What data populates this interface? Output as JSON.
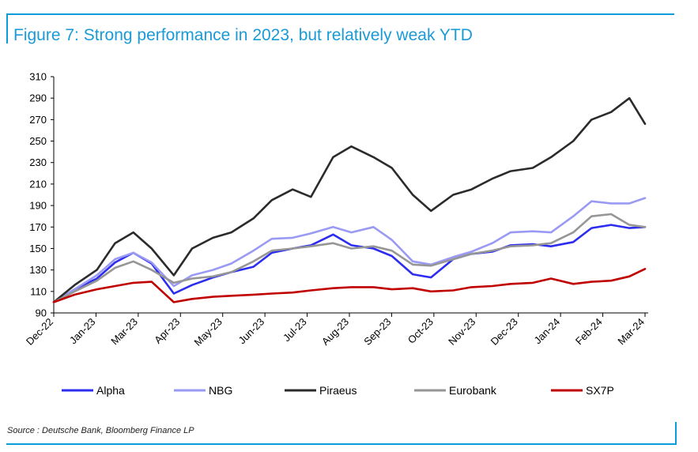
{
  "title": "Figure 7: Strong performance in 2023, but relatively weak YTD",
  "source": "Source : Deutsche Bank, Bloomberg Finance LP",
  "chart_data": {
    "type": "line",
    "title": "Figure 7: Strong performance in 2023, but relatively weak YTD",
    "xlabel": "",
    "ylabel": "",
    "ylim": [
      90,
      310
    ],
    "yticks": [
      90,
      110,
      130,
      150,
      170,
      190,
      210,
      230,
      250,
      270,
      290,
      310
    ],
    "x_tick_labels": [
      "Dec-22",
      "Jan-23",
      "Mar-23",
      "Apr-23",
      "May-23",
      "Jun-23",
      "Jul-23",
      "Aug-23",
      "Sep-23",
      "Oct-23",
      "Nov-23",
      "Dec-23",
      "Jan-24",
      "Feb-24",
      "Mar-24"
    ],
    "legend_position": "bottom",
    "grid": false,
    "x": [
      "2022-12-30",
      "2023-01-15",
      "2023-02-01",
      "2023-02-15",
      "2023-03-01",
      "2023-03-15",
      "2023-04-01",
      "2023-04-15",
      "2023-05-01",
      "2023-05-15",
      "2023-06-01",
      "2023-06-15",
      "2023-07-01",
      "2023-07-15",
      "2023-08-01",
      "2023-08-15",
      "2023-09-01",
      "2023-09-15",
      "2023-10-01",
      "2023-10-15",
      "2023-11-01",
      "2023-11-15",
      "2023-12-01",
      "2023-12-15",
      "2024-01-01",
      "2024-01-15",
      "2024-02-01",
      "2024-02-15",
      "2024-03-01",
      "2024-03-15",
      "2024-03-27"
    ],
    "series": [
      {
        "name": "Alpha",
        "color": "#2d2df0",
        "values": [
          100,
          112,
          122,
          137,
          146,
          136,
          108,
          116,
          123,
          128,
          133,
          146,
          150,
          153,
          163,
          153,
          150,
          143,
          126,
          123,
          140,
          145,
          147,
          153,
          154,
          152,
          156,
          169,
          172,
          169,
          170
        ]
      },
      {
        "name": "NBG",
        "color": "#9a9af5",
        "values": [
          100,
          112,
          125,
          140,
          146,
          137,
          115,
          125,
          130,
          136,
          148,
          159,
          160,
          164,
          170,
          165,
          170,
          158,
          138,
          135,
          142,
          147,
          155,
          165,
          166,
          165,
          180,
          194,
          192,
          192,
          197
        ]
      },
      {
        "name": "Piraeus",
        "color": "#2b2b2b",
        "values": [
          100,
          116,
          130,
          155,
          165,
          150,
          125,
          150,
          160,
          165,
          178,
          195,
          205,
          198,
          235,
          245,
          235,
          225,
          200,
          185,
          200,
          205,
          215,
          222,
          225,
          235,
          250,
          270,
          277,
          290,
          266
        ]
      },
      {
        "name": "Eurobank",
        "color": "#969696",
        "values": [
          100,
          110,
          120,
          132,
          138,
          130,
          118,
          122,
          124,
          128,
          138,
          148,
          150,
          152,
          155,
          150,
          152,
          148,
          135,
          134,
          140,
          145,
          148,
          152,
          153,
          155,
          165,
          180,
          182,
          172,
          170
        ]
      },
      {
        "name": "SX7P",
        "color": "#c00000",
        "values": [
          100,
          107,
          112,
          115,
          118,
          119,
          100,
          103,
          105,
          106,
          107,
          108,
          109,
          111,
          113,
          114,
          114,
          112,
          113,
          110,
          111,
          114,
          115,
          117,
          118,
          122,
          117,
          119,
          120,
          124,
          131
        ]
      }
    ]
  }
}
